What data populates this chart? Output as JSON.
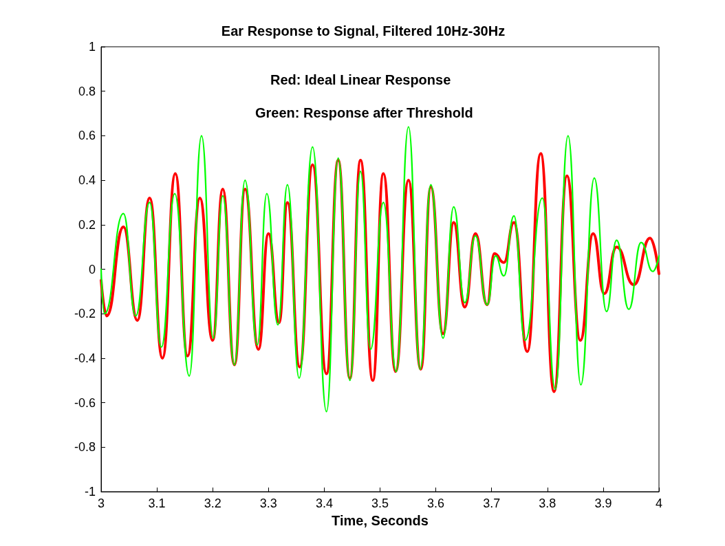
{
  "chart_data": {
    "type": "line",
    "title": "Ear Response to Signal, Filtered 10Hz-30Hz",
    "xlabel": "Time, Seconds",
    "annotations": [
      "Red: Ideal Linear Response",
      "Green: Response after Threshold"
    ],
    "xlim": [
      3,
      4
    ],
    "xticks": [
      3,
      3.1,
      3.2,
      3.3,
      3.4,
      3.5,
      3.6,
      3.7,
      3.8,
      3.9,
      4
    ],
    "ylim": [
      -1,
      1
    ],
    "yticks": [
      -1,
      -0.8,
      -0.6,
      -0.4,
      -0.2,
      0,
      0.2,
      0.4,
      0.6,
      0.8,
      1
    ],
    "grid": false,
    "marker": "none",
    "line_style": "solid",
    "series": [
      {
        "color": "#ff0000",
        "x": [
          3.0,
          3.01,
          3.04,
          3.065,
          3.087,
          3.11,
          3.133,
          3.155,
          3.177,
          3.2,
          3.218,
          3.239,
          3.258,
          3.282,
          3.3,
          3.319,
          3.334,
          3.356,
          3.379,
          3.404,
          3.425,
          3.446,
          3.465,
          3.487,
          3.506,
          3.528,
          3.551,
          3.573,
          3.591,
          3.613,
          3.632,
          3.652,
          3.671,
          3.692,
          3.705,
          3.722,
          3.74,
          3.764,
          3.788,
          3.812,
          3.835,
          3.859,
          3.882,
          3.902,
          3.924,
          3.955,
          3.984,
          4.0
        ],
        "values": [
          -0.05,
          -0.21,
          0.19,
          -0.23,
          0.32,
          -0.4,
          0.43,
          -0.39,
          0.32,
          -0.32,
          0.36,
          -0.43,
          0.36,
          -0.36,
          0.16,
          -0.24,
          0.3,
          -0.44,
          0.47,
          -0.47,
          0.49,
          -0.49,
          0.49,
          -0.5,
          0.43,
          -0.46,
          0.4,
          -0.45,
          0.37,
          -0.29,
          0.21,
          -0.17,
          0.16,
          -0.16,
          0.07,
          0.03,
          0.21,
          -0.37,
          0.52,
          -0.55,
          0.42,
          -0.32,
          0.16,
          -0.11,
          0.1,
          -0.07,
          0.14,
          -0.02
        ]
      },
      {
        "color": "#00ff00",
        "x": [
          3.0,
          3.006,
          3.04,
          3.062,
          3.087,
          3.108,
          3.132,
          3.158,
          3.18,
          3.201,
          3.218,
          3.239,
          3.258,
          3.28,
          3.297,
          3.317,
          3.334,
          3.355,
          3.379,
          3.404,
          3.425,
          3.446,
          3.465,
          3.483,
          3.506,
          3.529,
          3.551,
          3.572,
          3.591,
          3.613,
          3.632,
          3.652,
          3.671,
          3.692,
          3.707,
          3.722,
          3.74,
          3.76,
          3.791,
          3.814,
          3.837,
          3.86,
          3.884,
          3.906,
          3.924,
          3.946,
          3.968,
          3.989,
          4.0
        ],
        "values": [
          0.0,
          -0.2,
          0.25,
          -0.21,
          0.3,
          -0.35,
          0.34,
          -0.48,
          0.6,
          -0.31,
          0.33,
          -0.43,
          0.4,
          -0.34,
          0.34,
          -0.25,
          0.38,
          -0.49,
          0.55,
          -0.64,
          0.5,
          -0.5,
          0.44,
          -0.36,
          0.3,
          -0.46,
          0.64,
          -0.45,
          0.38,
          -0.31,
          0.28,
          -0.15,
          0.15,
          -0.16,
          0.06,
          -0.03,
          0.24,
          -0.32,
          0.32,
          -0.54,
          0.6,
          -0.52,
          0.41,
          -0.19,
          0.13,
          -0.18,
          0.12,
          -0.01,
          0.06
        ]
      }
    ]
  }
}
